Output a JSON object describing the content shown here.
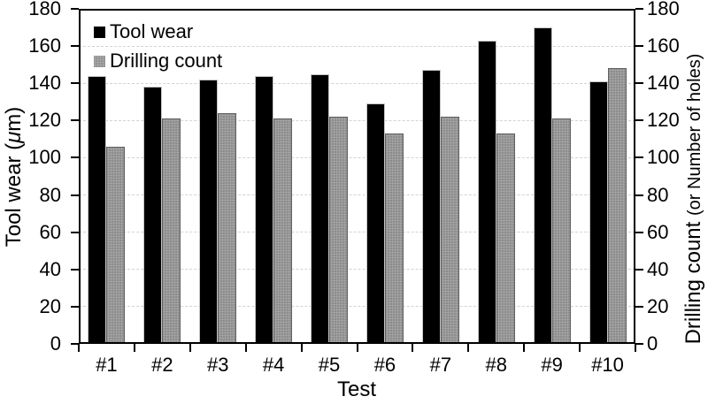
{
  "chart_data": {
    "type": "bar",
    "categories": [
      "#1",
      "#2",
      "#3",
      "#4",
      "#5",
      "#6",
      "#7",
      "#8",
      "#9",
      "#10"
    ],
    "series": [
      {
        "name": "Tool wear",
        "color": "#000000",
        "values": [
          144,
          138,
          142,
          144,
          145,
          129,
          147,
          163,
          170,
          141
        ]
      },
      {
        "name": "Drilling count",
        "color": "#8a8a8a",
        "values": [
          106,
          121,
          124,
          121,
          122,
          113,
          122,
          113,
          121,
          148
        ]
      }
    ],
    "xlabel": "Test",
    "y_ticks": [
      "0",
      "20",
      "40",
      "60",
      "80",
      "100",
      "120",
      "140",
      "160",
      "180"
    ],
    "ylim": [
      0,
      180
    ],
    "grid": "horizontal-dashed",
    "legend_position": "top-left-inside",
    "left_axis_title": {
      "full": "Tool wear (μm)",
      "pre": "Tool wear (",
      "mu": "μ",
      "post": "m)"
    },
    "right_axis_title": {
      "full": "Drilling count (or Number of holes)",
      "main": "Drilling count ",
      "sub": "(or Number of holes)"
    }
  }
}
